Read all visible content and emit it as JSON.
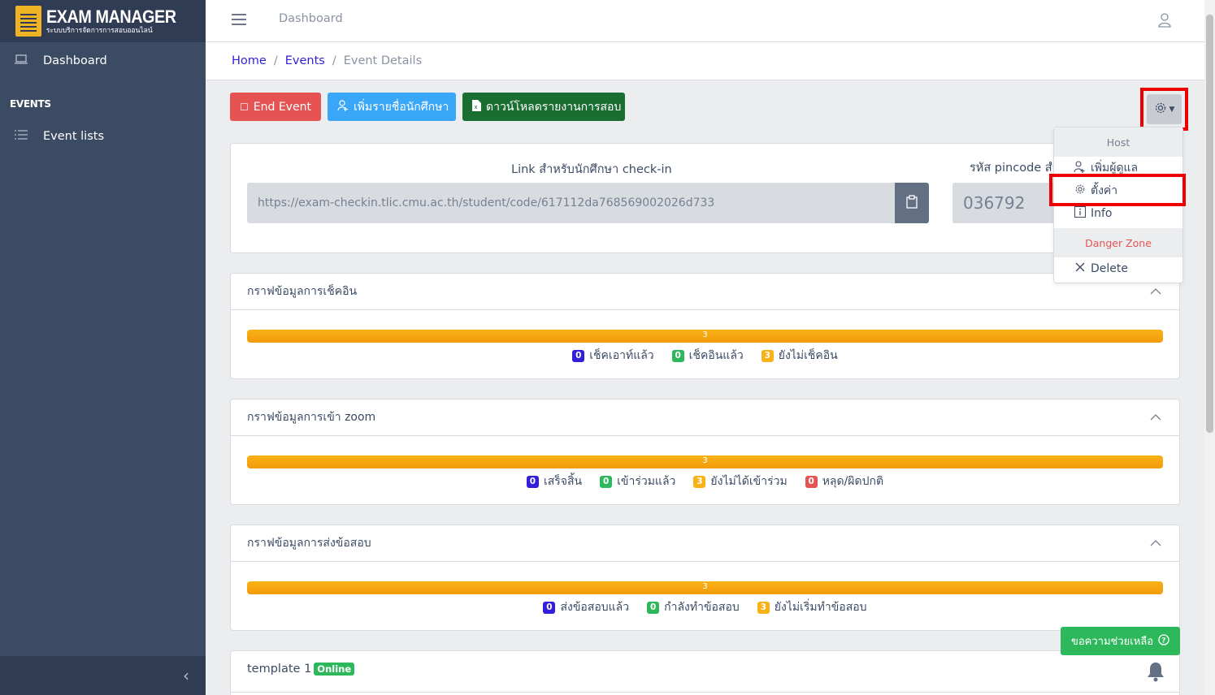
{
  "brand": {
    "title": "EXAM MANAGER",
    "subtitle": "ระบบบริการจัดการการสอบออนไลน์"
  },
  "sidebar": {
    "items": [
      {
        "label": "Dashboard",
        "icon": "laptop-icon"
      }
    ],
    "section_title": "EVENTS",
    "event_items": [
      {
        "label": "Event lists",
        "icon": "list-icon"
      }
    ],
    "toggler": "‹"
  },
  "header": {
    "nav_link": "Dashboard"
  },
  "breadcrumb": {
    "items": [
      "Home",
      "Events",
      "Event Details"
    ]
  },
  "actions": {
    "end_event": "End Event",
    "add_students": "เพิ่มรายชื่อนักศึกษา",
    "download_report": "ดาวน์โหลดรายงานการสอบ"
  },
  "link_card": {
    "link_label": "Link สำหรับนักศึกษา check-in",
    "link_value": "https://exam-checkin.tlic.cmu.ac.th/student/code/617112da768569002026d733",
    "pin_label": "รหัส pincode สำ",
    "pin_value": "036792"
  },
  "checkin_card": {
    "title": "กราฟข้อมูลการเช็คอิน",
    "bar_label": "3",
    "progress": 1.0,
    "legend": [
      {
        "count": "0",
        "label": "เช็คเอาท์แล้ว",
        "color": "#321fdb"
      },
      {
        "count": "0",
        "label": "เช็คอินแล้ว",
        "color": "#2eb85c"
      },
      {
        "count": "3",
        "label": "ยังไม่เช็คอิน",
        "color": "#f9b115"
      }
    ]
  },
  "zoom_card": {
    "title": "กราฟข้อมูลการเข้า zoom",
    "bar_label": "3",
    "progress": 1.0,
    "legend": [
      {
        "count": "0",
        "label": "เสร็จสิ้น",
        "color": "#321fdb"
      },
      {
        "count": "0",
        "label": "เข้าร่วมแล้ว",
        "color": "#2eb85c"
      },
      {
        "count": "3",
        "label": "ยังไม่ได้เข้าร่วม",
        "color": "#f9b115"
      },
      {
        "count": "0",
        "label": "หลุด/ผิดปกติ",
        "color": "#e55353"
      }
    ]
  },
  "submit_card": {
    "title": "กราฟข้อมูลการส่งข้อสอบ",
    "bar_label": "3",
    "progress": 1.0,
    "legend": [
      {
        "count": "0",
        "label": "ส่งข้อสอบแล้ว",
        "color": "#321fdb"
      },
      {
        "count": "0",
        "label": "กำลังทำข้อสอบ",
        "color": "#2eb85c"
      },
      {
        "count": "3",
        "label": "ยังไม่เริ่มทำข้อสอบ",
        "color": "#f9b115"
      }
    ]
  },
  "template_card": {
    "title": "template 1",
    "badge": "Online"
  },
  "help_button": {
    "label": "ขอความช่วยเหลือ"
  },
  "dropdown": {
    "host_header": "Host",
    "add_admin": "เพิ่มผู้ดูแล",
    "settings": "ตั้งค่า",
    "info": "Info",
    "danger_header": "Danger Zone",
    "delete": "Delete"
  },
  "colors": {
    "sidebar": "#3c4b64",
    "danger": "#e55353",
    "info": "#39a6f7",
    "success_dark": "#1b6e31",
    "success": "#2eb85c",
    "warning": "#f9b115",
    "primary": "#321fdb",
    "highlight": "#ee0000"
  }
}
